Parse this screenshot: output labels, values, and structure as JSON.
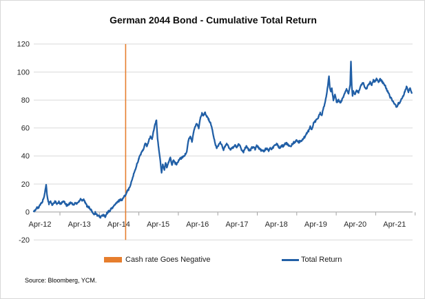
{
  "title": "German 2044 Bond - Cumulative Total Return",
  "source": "Source: Bloomberg, YCM.",
  "colors": {
    "line": "#215FA6",
    "event": "#E67E2D",
    "grid": "#D9D9D9",
    "axis": "#9E9E9E",
    "tick_text": "#262626"
  },
  "legend": [
    {
      "label": "Cash rate Goes Negative",
      "swatch": "box",
      "color": "#E67E2D"
    },
    {
      "label": "Total Return",
      "swatch": "line",
      "color": "#215FA6"
    }
  ],
  "chart_data": {
    "type": "line",
    "title": "German 2044 Bond - Cumulative Total Return",
    "xlabel": "",
    "ylabel": "",
    "ylim": [
      -20,
      120
    ],
    "grid": "horizontal",
    "legend_position": "bottom",
    "y_ticks": [
      120,
      100,
      80,
      60,
      40,
      20,
      0,
      -20
    ],
    "x_tick_labels": [
      "Apr-12",
      "Apr-13",
      "Apr-14",
      "Apr-15",
      "Apr-16",
      "Apr-17",
      "Apr-18",
      "Apr-19",
      "Apr-20",
      "Apr-21"
    ],
    "x_range_years": [
      2012.25,
      2021.72
    ],
    "event_marker": {
      "label": "Cash rate Goes Negative",
      "year": 2014.55
    },
    "series": [
      {
        "name": "Total Return",
        "x_unit": "decimal_year",
        "points": [
          [
            2012.25,
            0.5
          ],
          [
            2012.29,
            1
          ],
          [
            2012.33,
            3.5
          ],
          [
            2012.37,
            3
          ],
          [
            2012.42,
            5.5
          ],
          [
            2012.46,
            7
          ],
          [
            2012.5,
            10
          ],
          [
            2012.53,
            14
          ],
          [
            2012.56,
            19.5
          ],
          [
            2012.58,
            13
          ],
          [
            2012.61,
            8
          ],
          [
            2012.63,
            6
          ],
          [
            2012.67,
            7.5
          ],
          [
            2012.71,
            5
          ],
          [
            2012.75,
            6.5
          ],
          [
            2012.79,
            7.5
          ],
          [
            2012.83,
            5.5
          ],
          [
            2012.88,
            7
          ],
          [
            2012.92,
            6
          ],
          [
            2013.0,
            7.5
          ],
          [
            2013.04,
            6
          ],
          [
            2013.08,
            4.5
          ],
          [
            2013.13,
            5.5
          ],
          [
            2013.17,
            7
          ],
          [
            2013.21,
            6
          ],
          [
            2013.25,
            5
          ],
          [
            2013.29,
            6.5
          ],
          [
            2013.33,
            6
          ],
          [
            2013.38,
            7.5
          ],
          [
            2013.42,
            9.5
          ],
          [
            2013.46,
            8.5
          ],
          [
            2013.5,
            9
          ],
          [
            2013.54,
            6.5
          ],
          [
            2013.58,
            4.5
          ],
          [
            2013.63,
            3.5
          ],
          [
            2013.67,
            1.5
          ],
          [
            2013.71,
            0.5
          ],
          [
            2013.75,
            -1.5
          ],
          [
            2013.79,
            -0.5
          ],
          [
            2013.83,
            -2
          ],
          [
            2013.88,
            -3
          ],
          [
            2013.92,
            -3.5
          ],
          [
            2014.0,
            -2
          ],
          [
            2014.04,
            -3.8
          ],
          [
            2014.08,
            -1
          ],
          [
            2014.13,
            0.5
          ],
          [
            2014.17,
            1.5
          ],
          [
            2014.21,
            3
          ],
          [
            2014.25,
            4
          ],
          [
            2014.29,
            5.5
          ],
          [
            2014.33,
            6.5
          ],
          [
            2014.38,
            8
          ],
          [
            2014.42,
            9
          ],
          [
            2014.46,
            8.5
          ],
          [
            2014.5,
            10.5
          ],
          [
            2014.54,
            12
          ],
          [
            2014.58,
            14.5
          ],
          [
            2014.63,
            16.5
          ],
          [
            2014.67,
            19
          ],
          [
            2014.71,
            23
          ],
          [
            2014.75,
            27
          ],
          [
            2014.79,
            30
          ],
          [
            2014.83,
            34
          ],
          [
            2014.88,
            38
          ],
          [
            2014.92,
            41
          ],
          [
            2015.0,
            45
          ],
          [
            2015.04,
            49
          ],
          [
            2015.08,
            47
          ],
          [
            2015.13,
            51
          ],
          [
            2015.17,
            54
          ],
          [
            2015.21,
            52
          ],
          [
            2015.25,
            58
          ],
          [
            2015.29,
            63
          ],
          [
            2015.32,
            65.5
          ],
          [
            2015.35,
            52
          ],
          [
            2015.38,
            45
          ],
          [
            2015.42,
            36
          ],
          [
            2015.45,
            28
          ],
          [
            2015.48,
            34
          ],
          [
            2015.52,
            30
          ],
          [
            2015.55,
            35
          ],
          [
            2015.58,
            32
          ],
          [
            2015.63,
            36
          ],
          [
            2015.67,
            39
          ],
          [
            2015.71,
            33.5
          ],
          [
            2015.75,
            37
          ],
          [
            2015.79,
            35
          ],
          [
            2015.83,
            34
          ],
          [
            2015.88,
            37
          ],
          [
            2015.92,
            38
          ],
          [
            2016.0,
            40
          ],
          [
            2016.04,
            41
          ],
          [
            2016.08,
            43
          ],
          [
            2016.12,
            51
          ],
          [
            2016.17,
            54
          ],
          [
            2016.21,
            50
          ],
          [
            2016.25,
            57
          ],
          [
            2016.29,
            61
          ],
          [
            2016.33,
            63
          ],
          [
            2016.38,
            60
          ],
          [
            2016.42,
            67
          ],
          [
            2016.46,
            70.5
          ],
          [
            2016.5,
            69
          ],
          [
            2016.54,
            71
          ],
          [
            2016.58,
            68
          ],
          [
            2016.63,
            66
          ],
          [
            2016.67,
            64
          ],
          [
            2016.71,
            60
          ],
          [
            2016.75,
            54
          ],
          [
            2016.79,
            49
          ],
          [
            2016.83,
            45.5
          ],
          [
            2016.88,
            48
          ],
          [
            2016.92,
            50
          ],
          [
            2017.0,
            44.5
          ],
          [
            2017.04,
            47
          ],
          [
            2017.08,
            49
          ],
          [
            2017.13,
            46
          ],
          [
            2017.17,
            44.5
          ],
          [
            2017.21,
            46
          ],
          [
            2017.25,
            46.5
          ],
          [
            2017.29,
            48
          ],
          [
            2017.33,
            46
          ],
          [
            2017.38,
            48.5
          ],
          [
            2017.42,
            47
          ],
          [
            2017.46,
            44
          ],
          [
            2017.5,
            43
          ],
          [
            2017.54,
            45.5
          ],
          [
            2017.58,
            47
          ],
          [
            2017.63,
            44.5
          ],
          [
            2017.67,
            44
          ],
          [
            2017.71,
            46
          ],
          [
            2017.75,
            46.5
          ],
          [
            2017.79,
            45
          ],
          [
            2017.83,
            47.5
          ],
          [
            2017.88,
            46
          ],
          [
            2017.92,
            44.5
          ],
          [
            2018.0,
            43.5
          ],
          [
            2018.04,
            44.5
          ],
          [
            2018.08,
            45.5
          ],
          [
            2018.13,
            44
          ],
          [
            2018.17,
            46
          ],
          [
            2018.21,
            45
          ],
          [
            2018.25,
            46.5
          ],
          [
            2018.29,
            48
          ],
          [
            2018.33,
            49
          ],
          [
            2018.38,
            46.5
          ],
          [
            2018.42,
            46
          ],
          [
            2018.46,
            47.5
          ],
          [
            2018.5,
            47
          ],
          [
            2018.54,
            48.5
          ],
          [
            2018.58,
            49
          ],
          [
            2018.63,
            47.5
          ],
          [
            2018.67,
            47
          ],
          [
            2018.71,
            48
          ],
          [
            2018.75,
            49.5
          ],
          [
            2018.79,
            50
          ],
          [
            2018.83,
            51
          ],
          [
            2018.88,
            50
          ],
          [
            2018.92,
            50.5
          ],
          [
            2019.0,
            52.5
          ],
          [
            2019.04,
            54
          ],
          [
            2019.08,
            56.5
          ],
          [
            2019.13,
            58
          ],
          [
            2019.17,
            61
          ],
          [
            2019.21,
            59
          ],
          [
            2019.25,
            63
          ],
          [
            2019.29,
            64.5
          ],
          [
            2019.33,
            66
          ],
          [
            2019.38,
            68
          ],
          [
            2019.42,
            71
          ],
          [
            2019.46,
            69
          ],
          [
            2019.5,
            74
          ],
          [
            2019.54,
            78
          ],
          [
            2019.58,
            84
          ],
          [
            2019.61,
            90
          ],
          [
            2019.64,
            97
          ],
          [
            2019.66,
            89
          ],
          [
            2019.69,
            86
          ],
          [
            2019.71,
            88.5
          ],
          [
            2019.75,
            80
          ],
          [
            2019.79,
            84
          ],
          [
            2019.83,
            78.5
          ],
          [
            2019.88,
            80
          ],
          [
            2019.92,
            78
          ],
          [
            2020.0,
            82
          ],
          [
            2020.04,
            85
          ],
          [
            2020.08,
            88
          ],
          [
            2020.13,
            84.5
          ],
          [
            2020.17,
            91
          ],
          [
            2020.19,
            107.5
          ],
          [
            2020.21,
            90
          ],
          [
            2020.23,
            83
          ],
          [
            2020.25,
            86
          ],
          [
            2020.29,
            84
          ],
          [
            2020.33,
            87
          ],
          [
            2020.38,
            85.5
          ],
          [
            2020.42,
            89
          ],
          [
            2020.46,
            91
          ],
          [
            2020.5,
            92
          ],
          [
            2020.54,
            89
          ],
          [
            2020.58,
            88
          ],
          [
            2020.63,
            91
          ],
          [
            2020.67,
            92.5
          ],
          [
            2020.71,
            91
          ],
          [
            2020.75,
            94
          ],
          [
            2020.79,
            93
          ],
          [
            2020.83,
            95.5
          ],
          [
            2020.88,
            93
          ],
          [
            2020.92,
            95
          ],
          [
            2021.0,
            92
          ],
          [
            2021.04,
            90.5
          ],
          [
            2021.08,
            88
          ],
          [
            2021.13,
            85
          ],
          [
            2021.17,
            82
          ],
          [
            2021.21,
            80.5
          ],
          [
            2021.25,
            79
          ],
          [
            2021.29,
            77
          ],
          [
            2021.33,
            75
          ],
          [
            2021.38,
            77.5
          ],
          [
            2021.42,
            78.5
          ],
          [
            2021.46,
            81
          ],
          [
            2021.5,
            83
          ],
          [
            2021.54,
            86
          ],
          [
            2021.58,
            89.5
          ],
          [
            2021.63,
            86
          ],
          [
            2021.67,
            88.5
          ],
          [
            2021.71,
            85
          ]
        ]
      }
    ]
  }
}
